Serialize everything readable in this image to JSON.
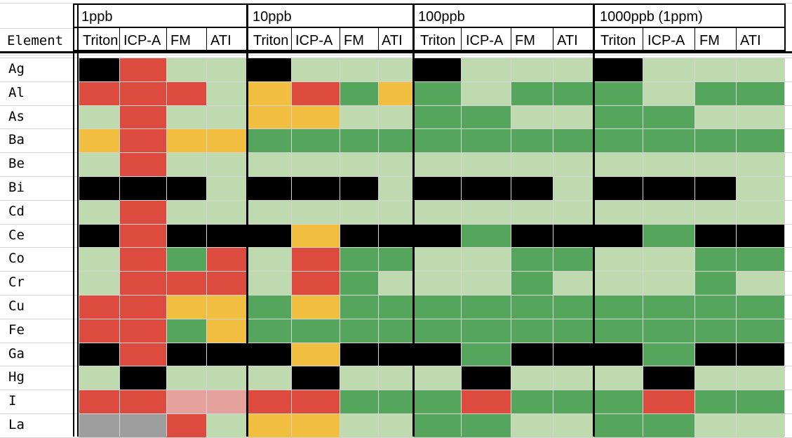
{
  "sheet": {
    "element_header": "Element",
    "groups": [
      {
        "label": "1ppb",
        "cols": [
          "Triton",
          "ICP-A",
          "FM",
          "ATI"
        ]
      },
      {
        "label": "10ppb",
        "cols": [
          "Triton",
          "ICP-A",
          "FM",
          "ATI"
        ]
      },
      {
        "label": "100ppb",
        "cols": [
          "Triton",
          "ICP-A",
          "FM",
          "ATI"
        ]
      },
      {
        "label": "1000ppb (1ppm)",
        "cols": [
          "Triton",
          "ICP-A",
          "FM",
          "ATI"
        ]
      }
    ],
    "palette": {
      "K": "#000000",
      "R": "#dd4b3e",
      "L": "#bfdaae",
      "D": "#55a65c",
      "Y": "#f1be3f",
      "P": "#e5a19c",
      "G": "#9e9e9e"
    },
    "rows": [
      {
        "element": "Ag",
        "cells": [
          "K",
          "R",
          "L",
          "L",
          "K",
          "L",
          "L",
          "L",
          "K",
          "L",
          "L",
          "L",
          "K",
          "L",
          "L",
          "L"
        ]
      },
      {
        "element": "Al",
        "cells": [
          "R",
          "R",
          "R",
          "L",
          "Y",
          "R",
          "D",
          "Y",
          "D",
          "L",
          "D",
          "D",
          "D",
          "L",
          "D",
          "D"
        ]
      },
      {
        "element": "As",
        "cells": [
          "L",
          "R",
          "L",
          "L",
          "Y",
          "Y",
          "L",
          "L",
          "D",
          "D",
          "L",
          "L",
          "D",
          "D",
          "L",
          "L"
        ]
      },
      {
        "element": "Ba",
        "cells": [
          "Y",
          "R",
          "Y",
          "Y",
          "D",
          "D",
          "D",
          "D",
          "D",
          "D",
          "D",
          "D",
          "D",
          "D",
          "D",
          "D"
        ]
      },
      {
        "element": "Be",
        "cells": [
          "L",
          "R",
          "L",
          "L",
          "L",
          "L",
          "L",
          "L",
          "L",
          "L",
          "L",
          "L",
          "L",
          "L",
          "L",
          "L"
        ]
      },
      {
        "element": "Bi",
        "cells": [
          "K",
          "K",
          "K",
          "L",
          "K",
          "K",
          "K",
          "L",
          "K",
          "K",
          "K",
          "L",
          "K",
          "K",
          "K",
          "L"
        ]
      },
      {
        "element": "Cd",
        "cells": [
          "L",
          "R",
          "L",
          "L",
          "L",
          "L",
          "L",
          "L",
          "L",
          "L",
          "L",
          "L",
          "L",
          "L",
          "L",
          "L"
        ]
      },
      {
        "element": "Ce",
        "cells": [
          "K",
          "R",
          "K",
          "K",
          "K",
          "Y",
          "K",
          "K",
          "K",
          "D",
          "K",
          "K",
          "K",
          "D",
          "K",
          "K"
        ]
      },
      {
        "element": "Co",
        "cells": [
          "L",
          "R",
          "D",
          "R",
          "L",
          "R",
          "D",
          "D",
          "L",
          "L",
          "D",
          "D",
          "L",
          "L",
          "D",
          "D"
        ]
      },
      {
        "element": "Cr",
        "cells": [
          "L",
          "R",
          "R",
          "R",
          "L",
          "R",
          "D",
          "L",
          "L",
          "L",
          "D",
          "L",
          "L",
          "L",
          "D",
          "L"
        ]
      },
      {
        "element": "Cu",
        "cells": [
          "R",
          "R",
          "Y",
          "Y",
          "D",
          "Y",
          "D",
          "D",
          "D",
          "D",
          "D",
          "D",
          "D",
          "D",
          "D",
          "D"
        ]
      },
      {
        "element": "Fe",
        "cells": [
          "R",
          "R",
          "D",
          "Y",
          "D",
          "D",
          "D",
          "D",
          "D",
          "D",
          "D",
          "D",
          "D",
          "D",
          "D",
          "D"
        ]
      },
      {
        "element": "Ga",
        "cells": [
          "K",
          "R",
          "K",
          "K",
          "K",
          "Y",
          "K",
          "K",
          "K",
          "D",
          "K",
          "K",
          "K",
          "D",
          "K",
          "K"
        ]
      },
      {
        "element": "Hg",
        "cells": [
          "L",
          "K",
          "L",
          "L",
          "L",
          "K",
          "L",
          "L",
          "L",
          "K",
          "L",
          "L",
          "L",
          "K",
          "L",
          "L"
        ]
      },
      {
        "element": "I",
        "cells": [
          "R",
          "R",
          "P",
          "P",
          "R",
          "R",
          "D",
          "D",
          "D",
          "R",
          "D",
          "D",
          "D",
          "R",
          "D",
          "D"
        ]
      },
      {
        "element": "La",
        "cells": [
          "G",
          "G",
          "R",
          "L",
          "Y",
          "Y",
          "L",
          "L",
          "D",
          "D",
          "L",
          "L",
          "D",
          "D",
          "L",
          "L"
        ]
      }
    ]
  }
}
